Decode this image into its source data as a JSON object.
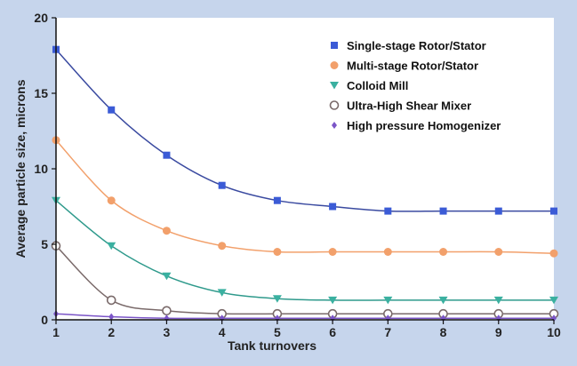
{
  "chart_data": {
    "type": "line",
    "title": "",
    "xlabel": "Tank turnovers",
    "ylabel": "Average particle size, microns",
    "x": [
      1,
      2,
      3,
      4,
      5,
      6,
      7,
      8,
      9,
      10
    ],
    "xlim": [
      1,
      10
    ],
    "ylim": [
      0,
      20
    ],
    "yticks": [
      0,
      5,
      10,
      15,
      20
    ],
    "xticks": [
      1,
      2,
      3,
      4,
      5,
      6,
      7,
      8,
      9,
      10
    ],
    "grid": false,
    "legend_position": "top-right",
    "series": [
      {
        "name": "Single-stage Rotor/Stator",
        "marker": "square",
        "color": "#3b5bd6",
        "line_color": "#3a4aa0",
        "values": [
          17.9,
          13.9,
          10.9,
          8.9,
          7.9,
          7.5,
          7.2,
          7.2,
          7.2,
          7.2
        ]
      },
      {
        "name": "Multi-stage Rotor/Stator",
        "marker": "circle",
        "color": "#f2a06b",
        "line_color": "#f2a06b",
        "values": [
          11.9,
          7.9,
          5.9,
          4.9,
          4.5,
          4.5,
          4.5,
          4.5,
          4.5,
          4.4
        ]
      },
      {
        "name": "Colloid Mill",
        "marker": "triangle-down",
        "color": "#3ab0a0",
        "line_color": "#2f9a8c",
        "values": [
          7.9,
          4.9,
          2.9,
          1.8,
          1.4,
          1.3,
          1.3,
          1.3,
          1.3,
          1.3
        ]
      },
      {
        "name": "Ultra-High Shear Mixer",
        "marker": "open-circle",
        "color": "#7a6a6a",
        "line_color": "#7a6a6a",
        "values": [
          4.9,
          1.3,
          0.6,
          0.4,
          0.4,
          0.4,
          0.4,
          0.4,
          0.4,
          0.4
        ]
      },
      {
        "name": "High pressure Homogenizer",
        "marker": "diamond",
        "color": "#7b55c7",
        "line_color": "#7b55c7",
        "values": [
          0.4,
          0.2,
          0.1,
          0.1,
          0.1,
          0.1,
          0.1,
          0.1,
          0.1,
          0.1
        ]
      }
    ]
  }
}
